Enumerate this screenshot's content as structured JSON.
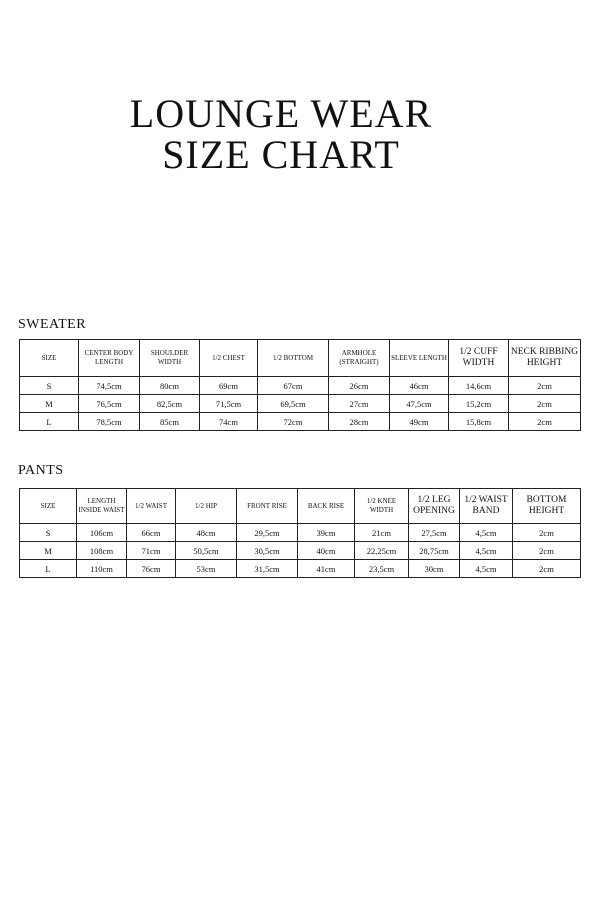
{
  "title": {
    "line1": "LOUNGE WEAR",
    "line2": "SIZE CHART"
  },
  "sweater": {
    "label": "SWEATER",
    "headers": [
      "SIZE",
      "CENTER BODY LENGTH",
      "SHOULDER WIDTH",
      "1/2 CHEST",
      "1/2 BOTTOM",
      "ARMHOLE (STRAIGHT)",
      "SLEEVE LENGTH",
      "1/2 CUFF WIDTH",
      "NECK RIBBING HEIGHT"
    ],
    "rows": [
      [
        "S",
        "74,5cm",
        "80cm",
        "69cm",
        "67cm",
        "26cm",
        "46cm",
        "14,6cm",
        "2cm"
      ],
      [
        "M",
        "76,5cm",
        "82,5cm",
        "71,5cm",
        "69,5cm",
        "27cm",
        "47,5cm",
        "15,2cm",
        "2cm"
      ],
      [
        "L",
        "78,5cm",
        "85cm",
        "74cm",
        "72cm",
        "28cm",
        "49cm",
        "15,8cm",
        "2cm"
      ]
    ]
  },
  "pants": {
    "label": "PANTS",
    "headers": [
      "SIZE",
      "LENGTH INSIDE WAIST",
      "1/2 WAIST",
      "1/2 HIP",
      "FRONT RISE",
      "BACK RISE",
      "1/2 KNEE WIDTH",
      "1/2 LEG OPENING",
      "1/2 WAIST BAND",
      "BOTTOM HEIGHT"
    ],
    "rows": [
      [
        "S",
        "106cm",
        "66cm",
        "48cm",
        "29,5cm",
        "39cm",
        "21cm",
        "27,5cm",
        "4,5cm",
        "2cm"
      ],
      [
        "M",
        "108cm",
        "71cm",
        "50,5cm",
        "30,5cm",
        "40cm",
        "22,25cm",
        "28,75cm",
        "4,5cm",
        "2cm"
      ],
      [
        "L",
        "110cm",
        "76cm",
        "53cm",
        "31,5cm",
        "41cm",
        "23,5cm",
        "30cm",
        "4,5cm",
        "2cm"
      ]
    ]
  }
}
